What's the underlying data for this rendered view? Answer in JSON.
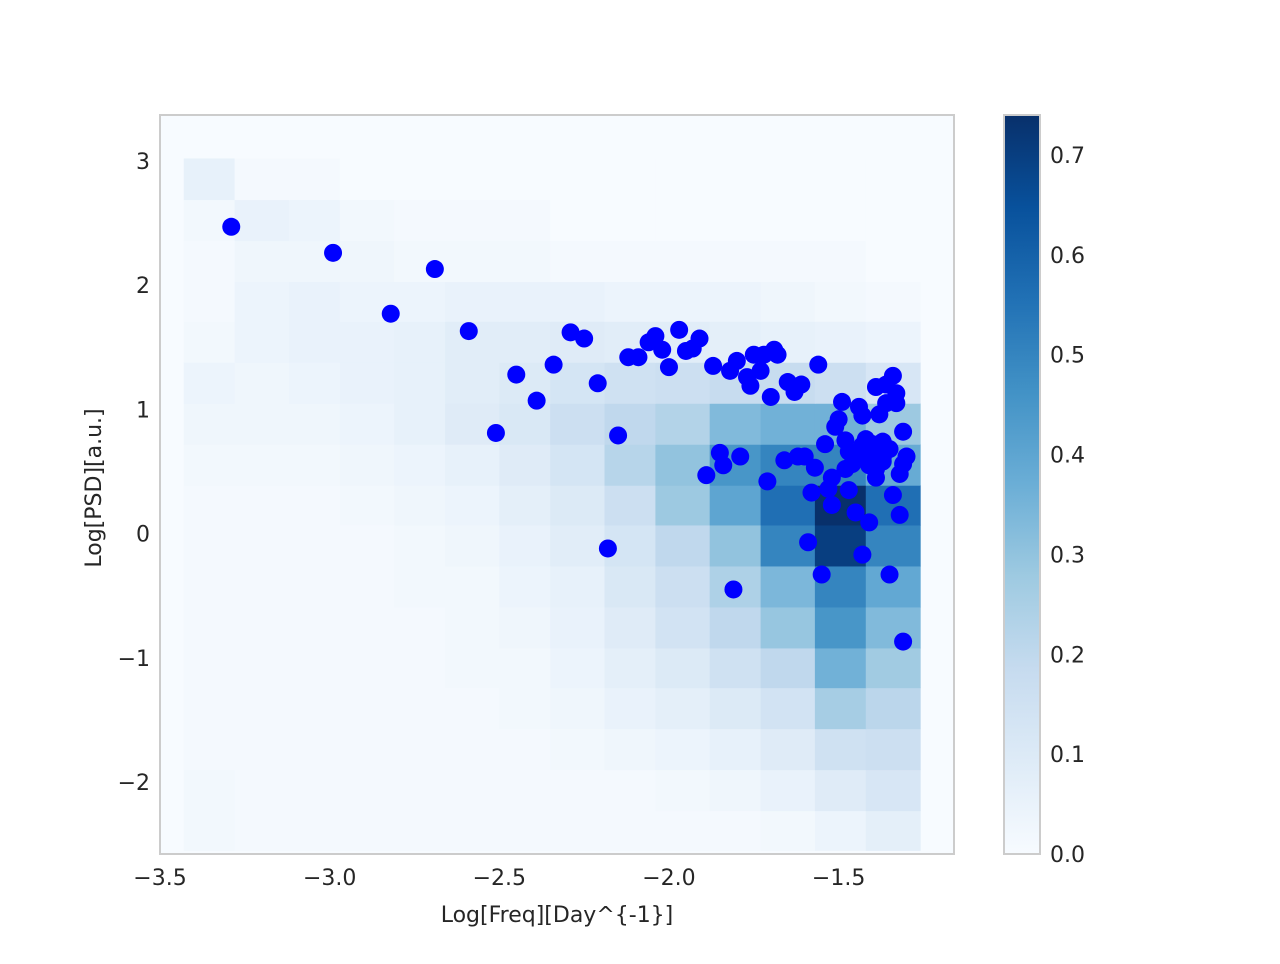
{
  "chart_data": {
    "type": "scatter",
    "overlay": "2d-histogram-heatmap",
    "title": "",
    "xlabel": "Log[Freq][Day^{-1}]",
    "ylabel": "Log[PSD][a.u.]",
    "xlim": [
      -3.5,
      -1.16
    ],
    "ylim": [
      -2.58,
      3.37
    ],
    "xticks": [
      -3.5,
      -3.0,
      -2.5,
      -2.0,
      -1.5
    ],
    "xtick_labels": [
      "−3.5",
      "−3.0",
      "−2.5",
      "−2.0",
      "−1.5"
    ],
    "yticks": [
      -2,
      -1,
      0,
      1,
      2,
      3
    ],
    "ytick_labels": [
      "−2",
      "−1",
      "0",
      "1",
      "2",
      "3"
    ],
    "grid": false,
    "point_color": "#0000ff",
    "colormap": "Blues",
    "colorbar": {
      "min": 0.0,
      "max": 0.74,
      "ticks": [
        0.0,
        0.1,
        0.2,
        0.3,
        0.4,
        0.5,
        0.6,
        0.7
      ],
      "tick_labels": [
        "0.0",
        "0.1",
        "0.2",
        "0.3",
        "0.4",
        "0.5",
        "0.6",
        "0.7"
      ]
    },
    "heatmap": {
      "x_edges": [
        -3.43,
        -3.28,
        -3.12,
        -2.97,
        -2.81,
        -2.66,
        -2.5,
        -2.35,
        -2.19,
        -2.04,
        -1.88,
        -1.73,
        -1.57,
        -1.42,
        -1.26
      ],
      "y_edges": [
        -2.55,
        -2.23,
        -1.9,
        -1.57,
        -1.24,
        -0.92,
        -0.59,
        -0.26,
        0.07,
        0.39,
        0.72,
        1.05,
        1.38,
        1.71,
        2.03,
        2.36,
        2.69,
        3.02
      ],
      "values": [
        [
          0.02,
          0.01,
          0.01,
          0.01,
          0.01,
          0.01,
          0.01,
          0.01,
          0.01,
          0.01,
          0.01,
          0.02,
          0.04,
          0.07
        ],
        [
          0.02,
          0.01,
          0.01,
          0.01,
          0.01,
          0.01,
          0.01,
          0.01,
          0.01,
          0.02,
          0.03,
          0.05,
          0.09,
          0.12
        ],
        [
          0.01,
          0.01,
          0.01,
          0.01,
          0.01,
          0.01,
          0.01,
          0.02,
          0.03,
          0.04,
          0.06,
          0.09,
          0.15,
          0.16
        ],
        [
          0.01,
          0.01,
          0.01,
          0.01,
          0.01,
          0.01,
          0.02,
          0.03,
          0.05,
          0.07,
          0.1,
          0.14,
          0.26,
          0.21
        ],
        [
          0.01,
          0.01,
          0.01,
          0.01,
          0.01,
          0.02,
          0.02,
          0.04,
          0.07,
          0.1,
          0.15,
          0.2,
          0.36,
          0.27
        ],
        [
          0.01,
          0.01,
          0.01,
          0.01,
          0.01,
          0.02,
          0.03,
          0.05,
          0.09,
          0.14,
          0.2,
          0.29,
          0.45,
          0.33
        ],
        [
          0.01,
          0.01,
          0.01,
          0.01,
          0.02,
          0.02,
          0.04,
          0.06,
          0.11,
          0.16,
          0.24,
          0.34,
          0.5,
          0.39
        ],
        [
          0.01,
          0.01,
          0.01,
          0.01,
          0.02,
          0.03,
          0.05,
          0.08,
          0.13,
          0.2,
          0.3,
          0.5,
          0.7,
          0.5
        ],
        [
          0.01,
          0.01,
          0.01,
          0.02,
          0.03,
          0.04,
          0.07,
          0.1,
          0.16,
          0.28,
          0.4,
          0.56,
          0.74,
          0.56
        ],
        [
          0.02,
          0.02,
          0.02,
          0.03,
          0.04,
          0.06,
          0.09,
          0.13,
          0.22,
          0.3,
          0.45,
          0.5,
          0.5,
          0.38
        ],
        [
          0.03,
          0.03,
          0.03,
          0.04,
          0.06,
          0.09,
          0.11,
          0.16,
          0.2,
          0.23,
          0.33,
          0.36,
          0.36,
          0.28
        ],
        [
          0.04,
          0.03,
          0.04,
          0.05,
          0.06,
          0.08,
          0.1,
          0.13,
          0.15,
          0.16,
          0.18,
          0.18,
          0.16,
          0.12
        ],
        [
          0.02,
          0.04,
          0.05,
          0.05,
          0.06,
          0.08,
          0.08,
          0.09,
          0.08,
          0.08,
          0.07,
          0.06,
          0.05,
          0.04
        ],
        [
          0.01,
          0.04,
          0.05,
          0.04,
          0.04,
          0.05,
          0.05,
          0.05,
          0.04,
          0.04,
          0.04,
          0.03,
          0.02,
          0.01
        ],
        [
          0.01,
          0.03,
          0.03,
          0.03,
          0.02,
          0.02,
          0.02,
          0.01,
          0.01,
          0.01,
          0.01,
          0.01,
          0.01,
          0.0
        ],
        [
          0.02,
          0.05,
          0.04,
          0.02,
          0.01,
          0.01,
          0.01,
          0.0,
          0.0,
          0.0,
          0.0,
          0.0,
          0.0,
          0.0
        ],
        [
          0.06,
          0.01,
          0.01,
          0.0,
          0.0,
          0.0,
          0.0,
          0.0,
          0.0,
          0.0,
          0.0,
          0.0,
          0.0,
          0.0
        ]
      ]
    },
    "points": [
      [
        -3.29,
        2.47
      ],
      [
        -2.99,
        2.26
      ],
      [
        -2.82,
        1.77
      ],
      [
        -2.69,
        2.13
      ],
      [
        -2.59,
        1.63
      ],
      [
        -2.51,
        0.81
      ],
      [
        -2.45,
        1.28
      ],
      [
        -2.39,
        1.07
      ],
      [
        -2.34,
        1.36
      ],
      [
        -2.29,
        1.62
      ],
      [
        -2.25,
        1.57
      ],
      [
        -2.21,
        1.21
      ],
      [
        -2.18,
        -0.12
      ],
      [
        -2.15,
        0.79
      ],
      [
        -2.12,
        1.42
      ],
      [
        -2.09,
        1.42
      ],
      [
        -2.06,
        1.54
      ],
      [
        -2.04,
        1.59
      ],
      [
        -2.02,
        1.48
      ],
      [
        -2.0,
        1.34
      ],
      [
        -1.97,
        1.64
      ],
      [
        -1.95,
        1.47
      ],
      [
        -1.93,
        1.49
      ],
      [
        -1.91,
        1.57
      ],
      [
        -1.89,
        0.47
      ],
      [
        -1.87,
        1.35
      ],
      [
        -1.85,
        0.65
      ],
      [
        -1.84,
        0.55
      ],
      [
        -1.82,
        1.31
      ],
      [
        -1.81,
        -0.45
      ],
      [
        -1.8,
        1.39
      ],
      [
        -1.79,
        0.62
      ],
      [
        -1.77,
        1.26
      ],
      [
        -1.76,
        1.19
      ],
      [
        -1.75,
        1.44
      ],
      [
        -1.73,
        1.31
      ],
      [
        -1.72,
        1.44
      ],
      [
        -1.71,
        0.42
      ],
      [
        -1.7,
        1.1
      ],
      [
        -1.69,
        1.48
      ],
      [
        -1.68,
        1.44
      ],
      [
        -1.66,
        0.59
      ],
      [
        -1.65,
        1.22
      ],
      [
        -1.63,
        1.14
      ],
      [
        -1.62,
        0.62
      ],
      [
        -1.61,
        1.2
      ],
      [
        -1.6,
        0.62
      ],
      [
        -1.59,
        -0.07
      ],
      [
        -1.58,
        0.33
      ],
      [
        -1.57,
        0.53
      ],
      [
        -1.56,
        1.36
      ],
      [
        -1.55,
        -0.33
      ],
      [
        -1.54,
        0.72
      ],
      [
        -1.53,
        0.36
      ],
      [
        -1.52,
        0.23
      ],
      [
        -1.51,
        0.86
      ],
      [
        -1.5,
        0.92
      ],
      [
        -1.49,
        1.06
      ],
      [
        -1.48,
        0.75
      ],
      [
        -1.47,
        0.66
      ],
      [
        -1.47,
        0.35
      ],
      [
        -1.46,
        0.56
      ],
      [
        -1.45,
        0.17
      ],
      [
        -1.44,
        1.02
      ],
      [
        -1.43,
        0.95
      ],
      [
        -1.43,
        -0.17
      ],
      [
        -1.42,
        0.76
      ],
      [
        -1.41,
        0.55
      ],
      [
        -1.41,
        0.09
      ],
      [
        -1.4,
        0.72
      ],
      [
        -1.39,
        0.52
      ],
      [
        -1.39,
        1.18
      ],
      [
        -1.38,
        0.96
      ],
      [
        -1.37,
        0.74
      ],
      [
        -1.37,
        0.61
      ],
      [
        -1.36,
        1.05
      ],
      [
        -1.36,
        1.2
      ],
      [
        -1.35,
        0.68
      ],
      [
        -1.35,
        -0.33
      ],
      [
        -1.34,
        0.31
      ],
      [
        -1.34,
        1.27
      ],
      [
        -1.33,
        1.05
      ],
      [
        -1.33,
        1.13
      ],
      [
        -1.32,
        0.48
      ],
      [
        -1.32,
        0.15
      ],
      [
        -1.31,
        0.82
      ],
      [
        -1.31,
        0.56
      ],
      [
        -1.31,
        -0.87
      ],
      [
        -1.3,
        0.62
      ],
      [
        -1.52,
        0.45
      ],
      [
        -1.48,
        0.52
      ],
      [
        -1.45,
        0.62
      ],
      [
        -1.43,
        0.71
      ],
      [
        -1.41,
        0.63
      ],
      [
        -1.39,
        0.45
      ],
      [
        -1.37,
        0.58
      ]
    ]
  },
  "colors": {
    "background": "#ffffff",
    "frame": "#cccccc",
    "text": "#262626",
    "cmap_low": "#f7fbff",
    "cmap_high": "#08306b"
  }
}
